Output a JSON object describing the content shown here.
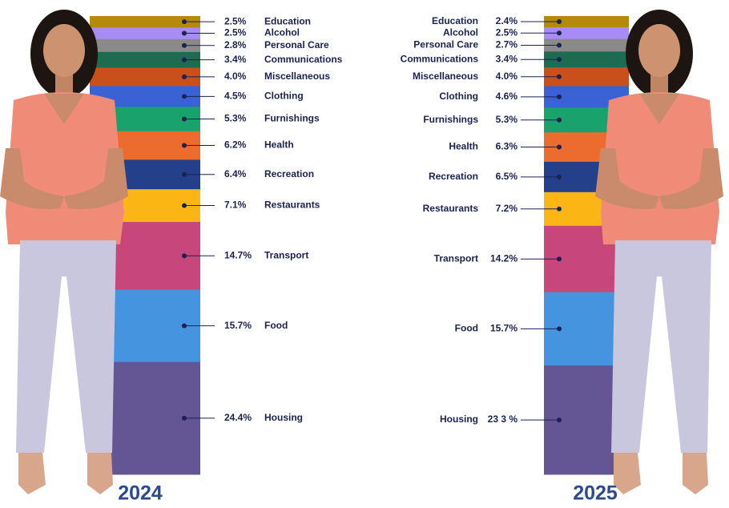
{
  "chart_data": {
    "type": "stacked-bar",
    "categories": [
      "Education",
      "Alcohol",
      "Personal Care",
      "Communications",
      "Miscellaneous",
      "Clothing",
      "Furnishings",
      "Health",
      "Recreation",
      "Restaurants",
      "Transport",
      "Food",
      "Housing"
    ],
    "colors": [
      "#b5890c",
      "#a88cf5",
      "#8a8a8a",
      "#1d6b50",
      "#c9501a",
      "#3a62d4",
      "#1aa26c",
      "#ec6c30",
      "#24408a",
      "#fbb616",
      "#c8477b",
      "#4594df",
      "#645594"
    ],
    "series": [
      {
        "name": "2024",
        "values": [
          2.5,
          2.5,
          2.8,
          3.4,
          4.0,
          4.5,
          5.3,
          6.2,
          6.4,
          7.1,
          14.7,
          15.7,
          24.4
        ],
        "value_labels": [
          "2.5%",
          "2.5%",
          "2.8%",
          "3.4%",
          "4.0%",
          "4.5%",
          "5.3%",
          "6.2%",
          "6.4%",
          "7.1%",
          "14.7%",
          "15.7%",
          "24.4%"
        ]
      },
      {
        "name": "2025",
        "values": [
          2.4,
          2.5,
          2.7,
          3.4,
          4.0,
          4.6,
          5.3,
          6.3,
          6.5,
          7.2,
          14.2,
          15.7,
          23.3
        ],
        "value_labels": [
          "2.4%",
          "2.5%",
          "2.7%",
          "3.4%",
          "4.0%",
          "4.6%",
          "5.3%",
          "6.3%",
          "6.5%",
          "7.2%",
          "14.2%",
          "15.7%",
          "23 3 %"
        ]
      }
    ]
  }
}
